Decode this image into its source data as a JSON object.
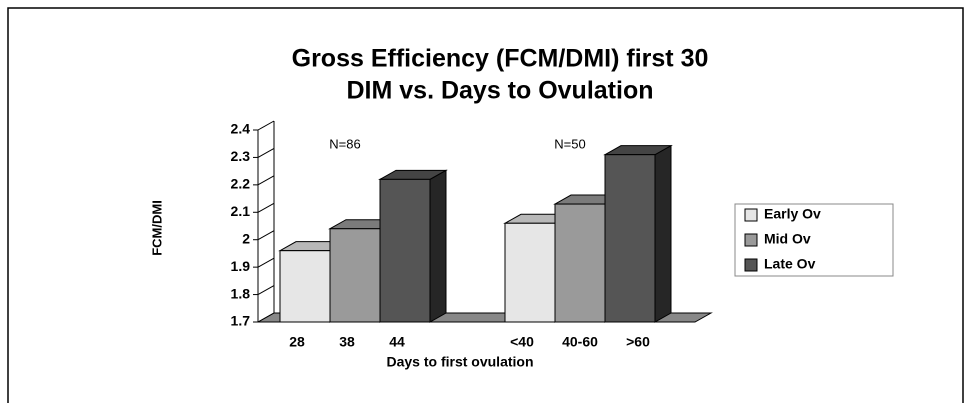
{
  "chart_data": {
    "type": "bar3d",
    "title": [
      "Gross Efficiency (FCM/DMI) first 30",
      "DIM vs. Days to Ovulation"
    ],
    "y_label": "FCM/DMI",
    "x_label": "Days to first ovulation",
    "categories": [
      "N=86",
      "N=50"
    ],
    "series": [
      {
        "name": "Early Ov",
        "color": "#e6e6e6",
        "values": [
          1.96,
          2.06
        ],
        "x_labels": [
          "28",
          "<40"
        ]
      },
      {
        "name": "Mid Ov",
        "color": "#9a9a9a",
        "values": [
          2.04,
          2.13
        ],
        "x_labels": [
          "38",
          "40-60"
        ]
      },
      {
        "name": "Late Ov",
        "color": "#555555",
        "values": [
          2.22,
          2.31
        ],
        "x_labels": [
          "44",
          ">60"
        ]
      }
    ],
    "ylim": [
      1.7,
      2.4
    ],
    "yticks": [
      1.7,
      1.8,
      1.9,
      2,
      2.1,
      2.2,
      2.3,
      2.4
    ],
    "legend": "right"
  }
}
